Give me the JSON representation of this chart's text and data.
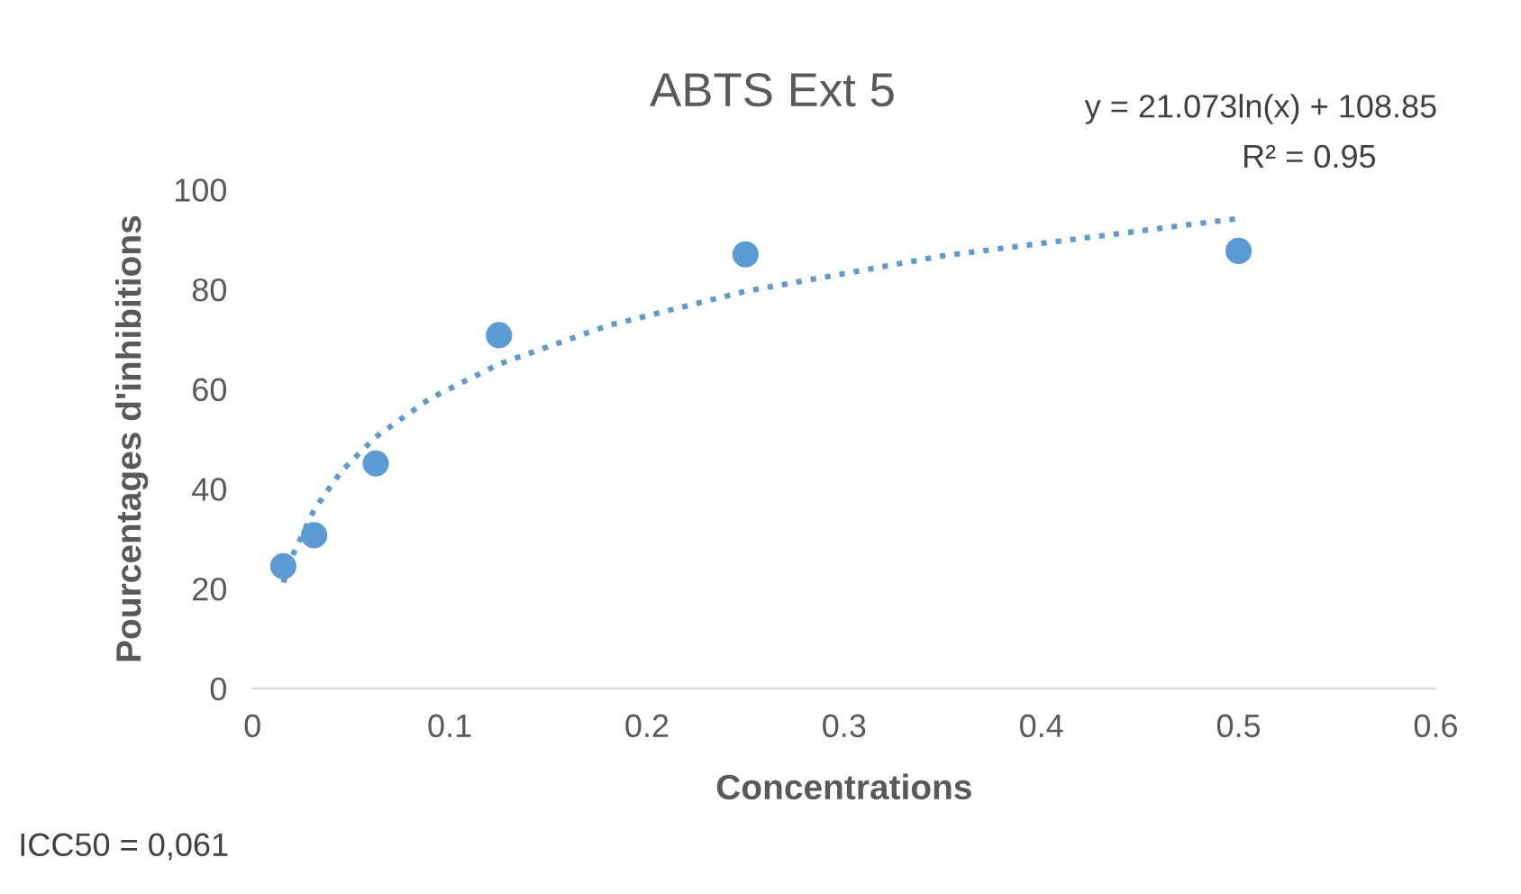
{
  "chart_data": {
    "type": "scatter",
    "title": "ABTS Ext 5",
    "xlabel": "Concentrations",
    "ylabel": "Pourcentages d'inhibitions",
    "xlim": [
      0,
      0.6
    ],
    "xticks": [
      0,
      0.1,
      0.2,
      0.3,
      0.4,
      0.5,
      0.6
    ],
    "ylim": [
      0,
      100
    ],
    "yticks": [
      0,
      20,
      40,
      60,
      80,
      100
    ],
    "grid": false,
    "legend": false,
    "series": [
      {
        "color": "#5b9bd5",
        "marker": "circle",
        "x": [
          0.015625,
          0.03125,
          0.0625,
          0.125,
          0.25,
          0.5
        ],
        "values": [
          24.5,
          30.7,
          45.1,
          70.8,
          87,
          87.7
        ]
      },
      {
        "type": "line",
        "color": "#5b9bd5",
        "marker": "none",
        "line_style": "dotted",
        "x": [
          0.015625,
          0.02,
          0.03125,
          0.045,
          0.0625,
          0.09,
          0.125,
          0.18,
          0.25,
          0.35,
          0.5
        ],
        "values": [
          21.2,
          26.4,
          35.8,
          43.5,
          50.4,
          58.1,
          65,
          72.7,
          79.6,
          86.7,
          94.2
        ]
      }
    ],
    "annotations": [
      "y = 21.073ln(x) + 108.85",
      "R² = 0.95",
      "ICC50 = 0,061"
    ]
  }
}
